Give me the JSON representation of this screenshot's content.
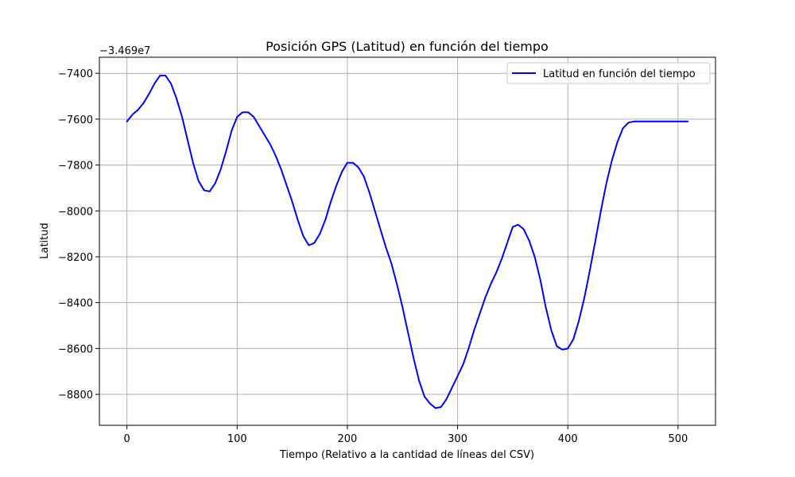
{
  "chart_data": {
    "type": "line",
    "title": "Posición GPS (Latitud) en función del tiempo",
    "xlabel": "Tiempo (Relativo a la cantidad de líneas del CSV)",
    "ylabel": "Latitud",
    "offset_text": "−3.469e7",
    "xlim": [
      -25,
      534
    ],
    "ylim": [
      -8935,
      -7330
    ],
    "x_ticks": [
      0,
      100,
      200,
      300,
      400,
      500
    ],
    "y_ticks": [
      -7400,
      -7600,
      -7800,
      -8000,
      -8200,
      -8400,
      -8600,
      -8800
    ],
    "grid": true,
    "legend_position": "top-right",
    "colors": {
      "series": "#0000ff",
      "grid": "#b0b0b0",
      "axis": "#000000"
    },
    "series": [
      {
        "name": "Latitud en función del tiempo",
        "x": [
          0,
          5,
          10,
          15,
          20,
          25,
          30,
          35,
          40,
          45,
          50,
          55,
          60,
          65,
          70,
          75,
          80,
          85,
          90,
          95,
          100,
          105,
          110,
          115,
          120,
          125,
          130,
          135,
          140,
          145,
          150,
          155,
          160,
          165,
          170,
          175,
          180,
          185,
          190,
          195,
          200,
          205,
          210,
          215,
          220,
          225,
          230,
          235,
          240,
          245,
          250,
          255,
          260,
          265,
          270,
          275,
          280,
          285,
          290,
          295,
          300,
          305,
          310,
          315,
          320,
          325,
          330,
          335,
          340,
          345,
          350,
          355,
          360,
          365,
          370,
          375,
          380,
          385,
          390,
          395,
          400,
          405,
          410,
          415,
          420,
          425,
          430,
          435,
          440,
          445,
          450,
          455,
          460,
          465,
          470,
          475,
          480,
          485,
          490,
          495,
          500,
          505,
          509
        ],
        "y": [
          -7610,
          -7580,
          -7560,
          -7530,
          -7490,
          -7445,
          -7410,
          -7410,
          -7445,
          -7510,
          -7590,
          -7690,
          -7790,
          -7870,
          -7910,
          -7915,
          -7880,
          -7820,
          -7740,
          -7650,
          -7590,
          -7570,
          -7570,
          -7590,
          -7630,
          -7670,
          -7710,
          -7760,
          -7820,
          -7890,
          -7960,
          -8040,
          -8110,
          -8150,
          -8140,
          -8100,
          -8040,
          -7960,
          -7890,
          -7830,
          -7790,
          -7790,
          -7810,
          -7850,
          -7920,
          -8000,
          -8080,
          -8160,
          -8230,
          -8320,
          -8420,
          -8530,
          -8640,
          -8740,
          -8810,
          -8840,
          -8860,
          -8855,
          -8820,
          -8770,
          -8720,
          -8670,
          -8600,
          -8520,
          -8450,
          -8380,
          -8320,
          -8270,
          -8210,
          -8140,
          -8070,
          -8060,
          -8080,
          -8130,
          -8200,
          -8300,
          -8420,
          -8520,
          -8590,
          -8605,
          -8600,
          -8560,
          -8480,
          -8380,
          -8260,
          -8130,
          -8000,
          -7880,
          -7780,
          -7700,
          -7640,
          -7615,
          -7610,
          -7610,
          -7610,
          -7610,
          -7610,
          -7610,
          -7610,
          -7610,
          -7610,
          -7610,
          -7610
        ]
      }
    ]
  }
}
